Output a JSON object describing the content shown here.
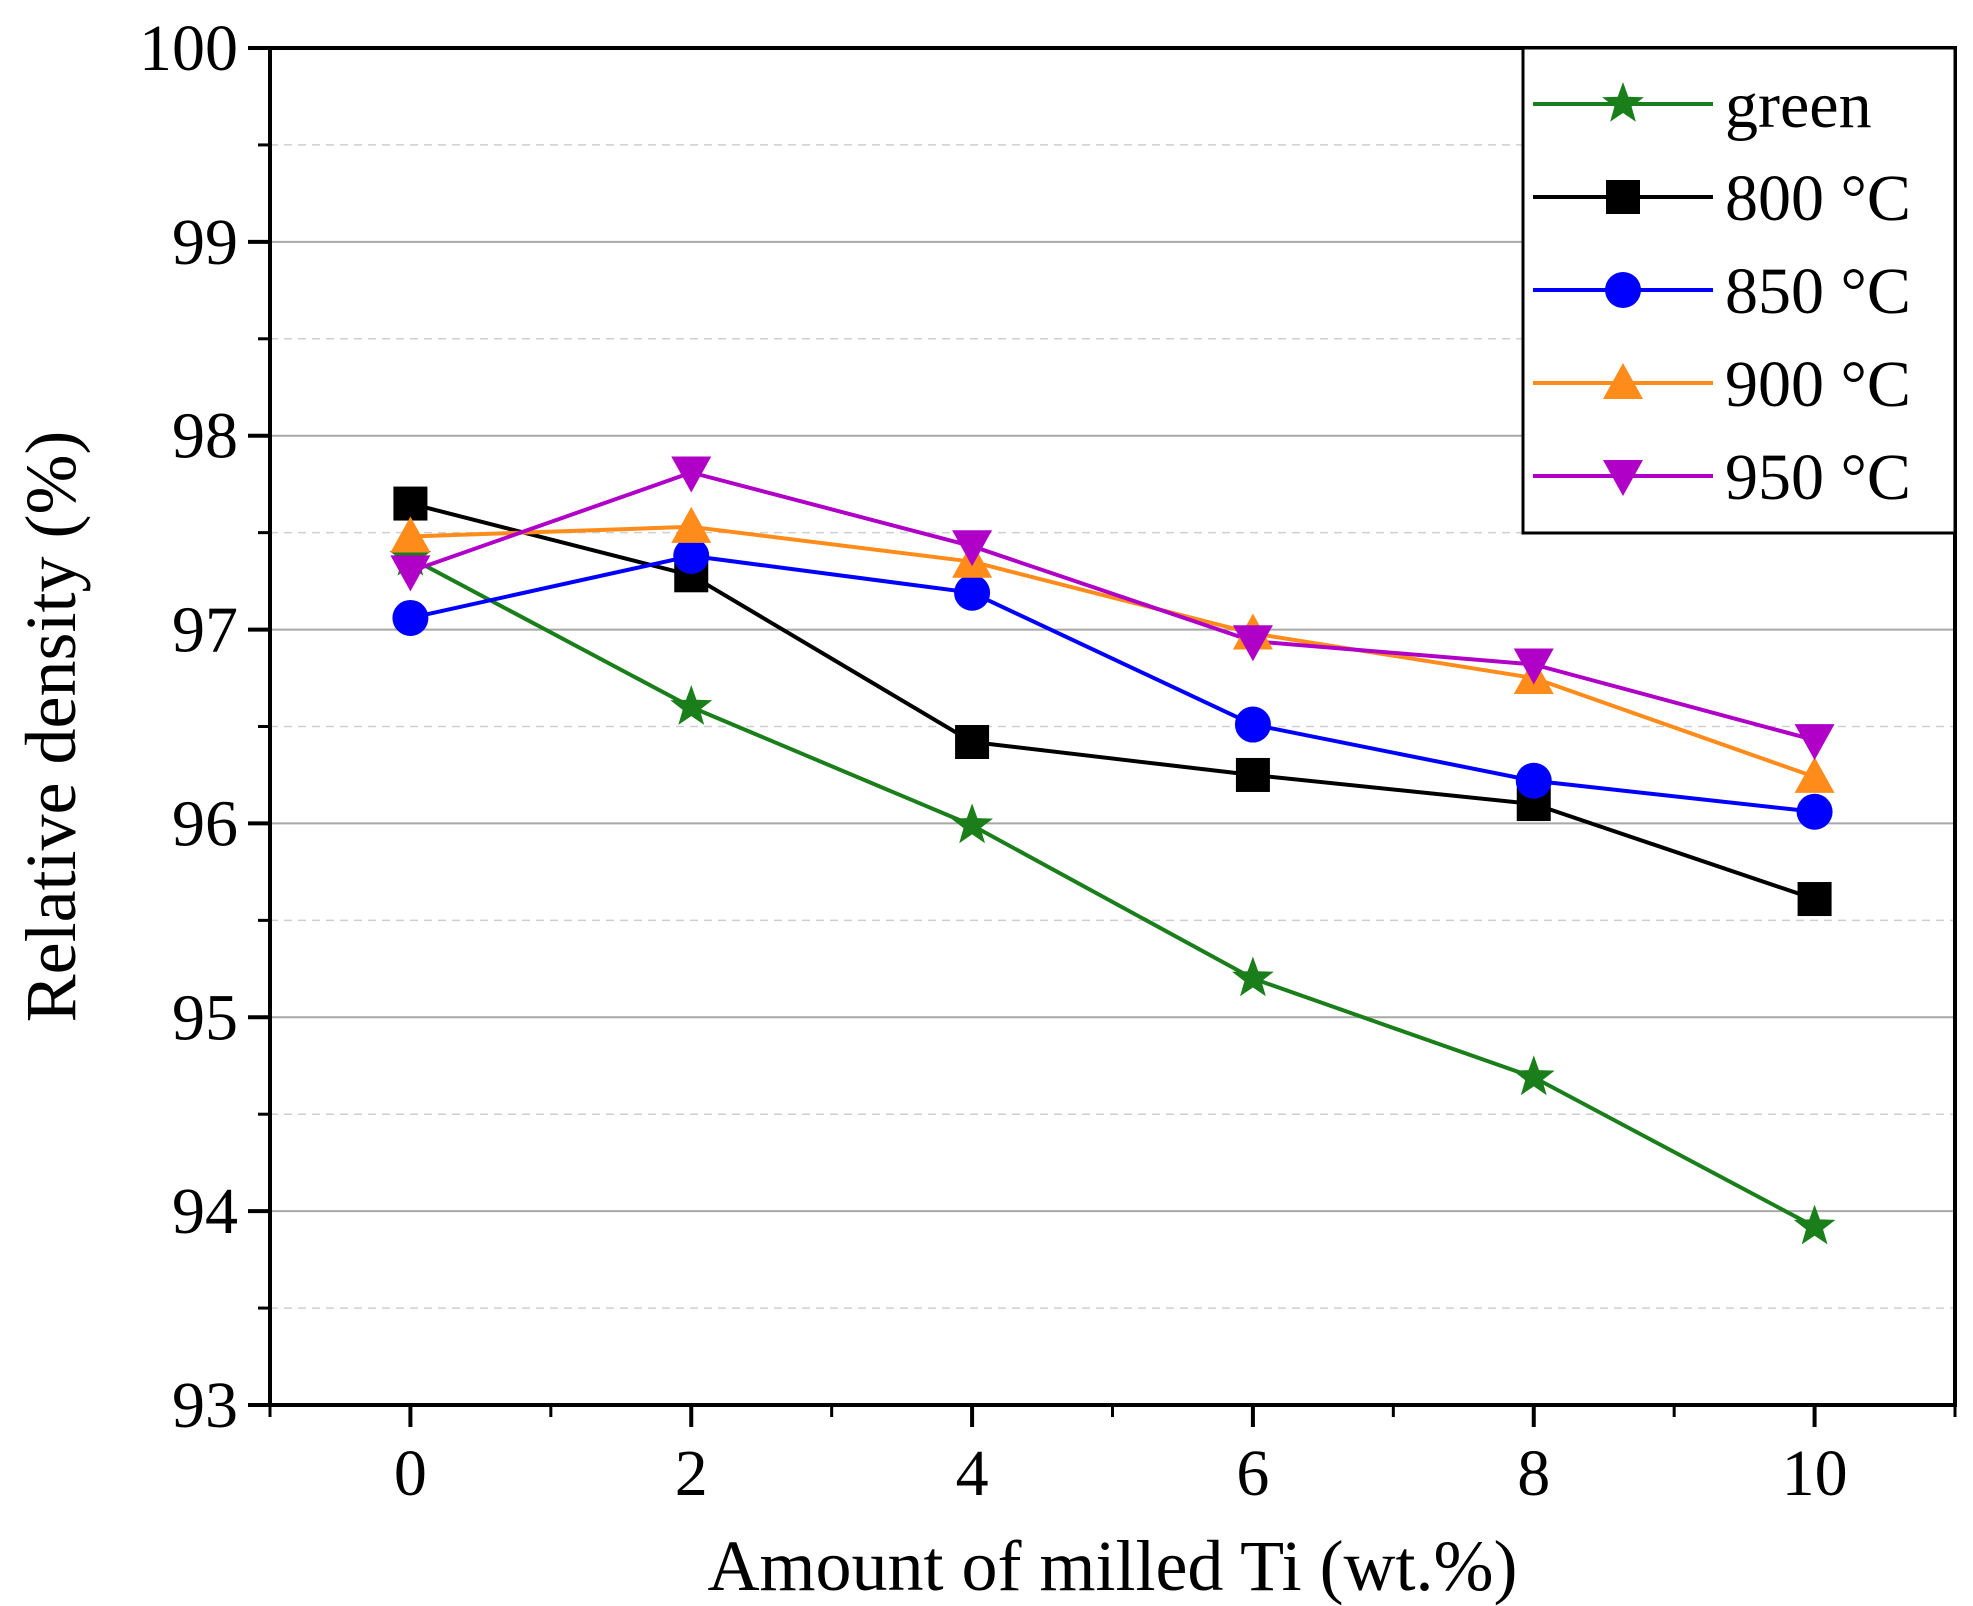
{
  "chart_data": {
    "type": "line",
    "title": "",
    "xlabel": "Amount of milled Ti (wt.%)",
    "ylabel": "Relative density (%)",
    "xlim": [
      -1,
      11
    ],
    "ylim": [
      93,
      100
    ],
    "xticks": [
      0,
      2,
      4,
      6,
      8,
      10
    ],
    "yticks": [
      93,
      94,
      95,
      96,
      97,
      98,
      99,
      100
    ],
    "grid": true,
    "legend_position": "top-right",
    "x": [
      0,
      2,
      4,
      6,
      8,
      10
    ],
    "series": [
      {
        "name": "green",
        "color": "#1a7f1a",
        "marker": "star",
        "values": [
          97.37,
          96.6,
          95.99,
          95.2,
          94.69,
          93.92
        ]
      },
      {
        "name": "800 °C",
        "color": "#000000",
        "marker": "square",
        "values": [
          97.65,
          97.28,
          96.42,
          96.25,
          96.1,
          95.61
        ]
      },
      {
        "name": "850 °C",
        "color": "#0000ff",
        "marker": "circle",
        "values": [
          97.06,
          97.38,
          97.19,
          96.51,
          96.22,
          96.06
        ]
      },
      {
        "name": "900 °C",
        "color": "#ff8c1a",
        "marker": "triangle-up",
        "values": [
          97.48,
          97.53,
          97.35,
          96.98,
          96.75,
          96.24
        ]
      },
      {
        "name": "950 °C",
        "color": "#b000c8",
        "marker": "triangle-down",
        "values": [
          97.3,
          97.81,
          97.43,
          96.94,
          96.82,
          96.43
        ]
      }
    ]
  }
}
